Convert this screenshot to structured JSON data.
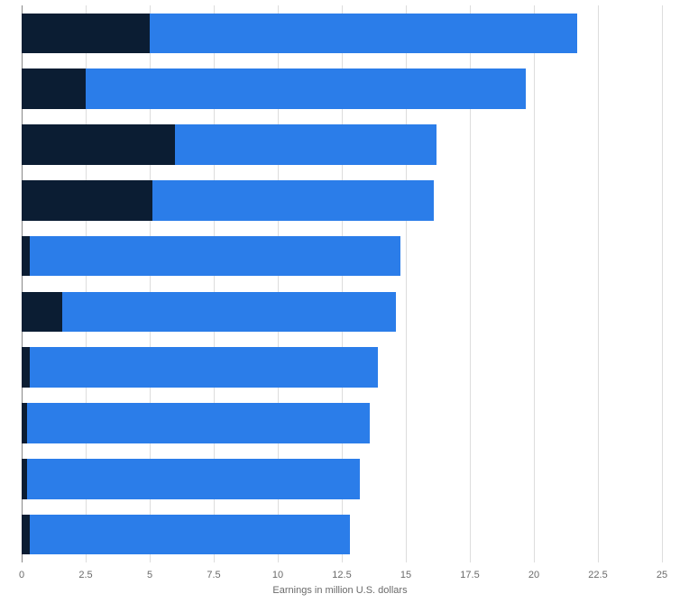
{
  "chart": {
    "type": "bar-horizontal-stacked",
    "background_color": "#ffffff",
    "grid_color": "#dddddd",
    "axis_color": "#888888",
    "xlim": [
      0,
      25
    ],
    "xtick_step": 2.5,
    "xticks": [
      "0",
      "2.5",
      "5",
      "7.5",
      "10",
      "12.5",
      "15",
      "17.5",
      "20",
      "22.5",
      "25"
    ],
    "x_axis_title": "Earnings in million U.S. dollars",
    "tick_fontsize": 11,
    "tick_color": "#6a6a6a",
    "title_fontsize": 11,
    "title_color": "#6a6a6a",
    "series_colors": [
      "#0b1d33",
      "#2b7de9"
    ],
    "bars": [
      {
        "segments": [
          5.0,
          16.7
        ]
      },
      {
        "segments": [
          2.5,
          17.2
        ]
      },
      {
        "segments": [
          6.0,
          10.2
        ]
      },
      {
        "segments": [
          5.1,
          11.0
        ]
      },
      {
        "segments": [
          0.3,
          14.5
        ]
      },
      {
        "segments": [
          1.6,
          13.0
        ]
      },
      {
        "segments": [
          0.3,
          13.6
        ]
      },
      {
        "segments": [
          0.2,
          13.4
        ]
      },
      {
        "segments": [
          0.2,
          13.0
        ]
      },
      {
        "segments": [
          0.3,
          12.5
        ]
      }
    ]
  }
}
